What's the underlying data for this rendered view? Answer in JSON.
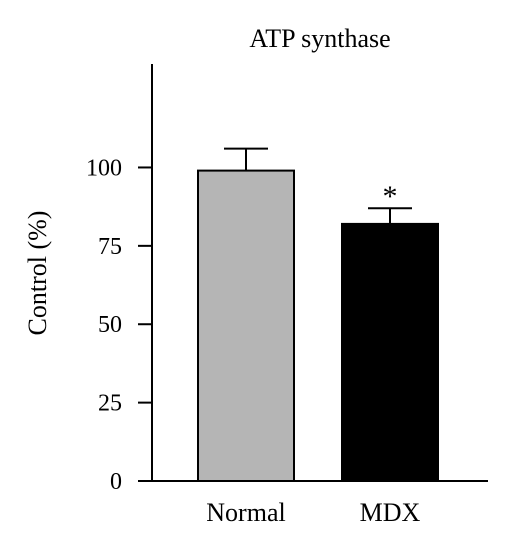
{
  "chart_data": {
    "type": "bar",
    "title": "ATP synthase",
    "xlabel": "",
    "ylabel": "Control (%)",
    "categories": [
      "Normal",
      "MDX"
    ],
    "values": [
      99,
      82
    ],
    "error_upper": [
      106,
      87
    ],
    "significance": [
      "",
      "*"
    ],
    "ylim": [
      0,
      133
    ],
    "yticks": [
      0,
      25,
      50,
      75,
      100
    ],
    "ytick_labels": [
      "0",
      "25",
      "50",
      "75",
      "100"
    ],
    "bar_colors": [
      "#b5b5b5",
      "#000000"
    ],
    "grid": false,
    "legend": "none"
  }
}
